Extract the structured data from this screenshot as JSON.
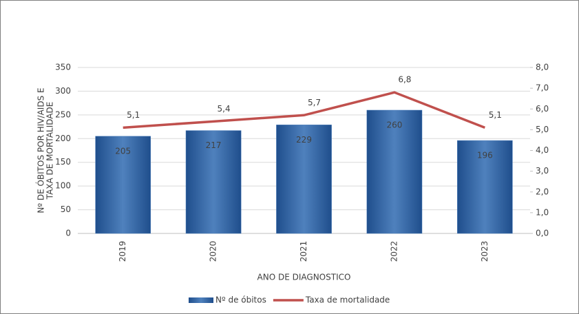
{
  "chart_data": {
    "type": "bar_line",
    "y_label": [
      "Nº DE ÓBITOS POR HIV/AIDS E",
      "TAXA DE MORTALIDADE"
    ],
    "x_label": "ANO DE  DIAGNOSTICO",
    "categories": [
      "2019",
      "2020",
      "2021",
      "2022",
      "2023"
    ],
    "series": [
      {
        "name": "Nº de óbitos",
        "type": "bar",
        "color": "#4f81bd",
        "values": [
          205,
          217,
          229,
          260,
          196
        ]
      },
      {
        "name": "Taxa de mortalidade",
        "type": "line",
        "axis": "y2",
        "color": "#c0504d",
        "values": [
          5.1,
          5.4,
          5.7,
          6.8,
          5.1
        ],
        "value_labels": [
          "5,1",
          "5,4",
          "5,7",
          "6,8",
          "5,1"
        ]
      }
    ],
    "ylim": [
      0,
      350
    ],
    "yticks": [
      0,
      50,
      100,
      150,
      200,
      250,
      300,
      350
    ],
    "y2lim": [
      0,
      8
    ],
    "y2ticks": [
      {
        "value": 0,
        "label": "0,0"
      },
      {
        "value": 1,
        "label": "1,0"
      },
      {
        "value": 2,
        "label": "2,0"
      },
      {
        "value": 3,
        "label": "3,0"
      },
      {
        "value": 4,
        "label": "4,0"
      },
      {
        "value": 5,
        "label": "5,0"
      },
      {
        "value": 6,
        "label": "6,0"
      },
      {
        "value": 7,
        "label": "7,0"
      },
      {
        "value": 8,
        "label": "8,0"
      }
    ],
    "grid": true,
    "legend": "bottom"
  }
}
